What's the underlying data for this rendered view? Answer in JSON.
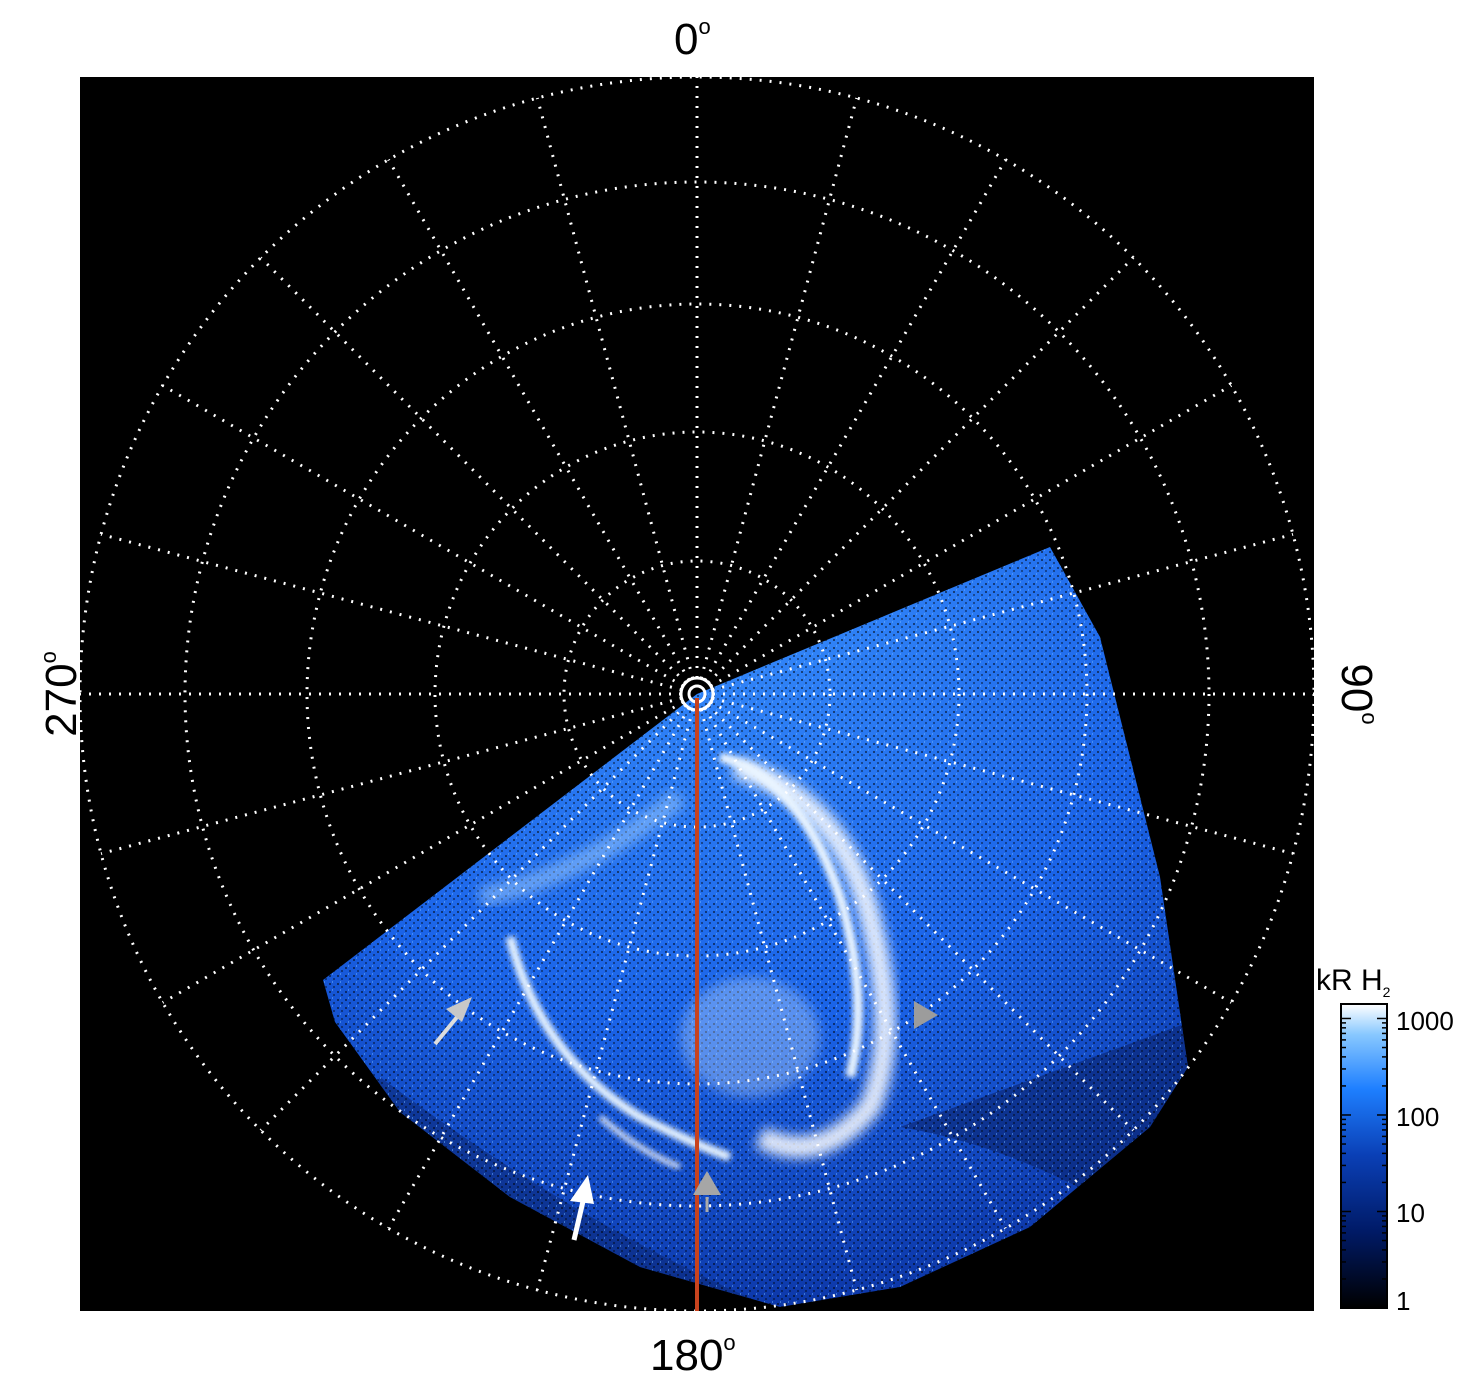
{
  "labels": {
    "top": "0",
    "bottom": "180",
    "left": "270",
    "right": "90",
    "degree_mark": "o"
  },
  "colorbar": {
    "unit": "kR H",
    "unit_subscript": "2",
    "ticks": [
      "1000",
      "100",
      "10",
      "1"
    ],
    "scale": "log",
    "colors": [
      "#000000",
      "#001a66",
      "#0a3fb5",
      "#1e7fff",
      "#88c8ff",
      "#ffffff"
    ]
  },
  "colors": {
    "background": "#000000",
    "grid": "#ffffff",
    "meridian_line": "#c8431e",
    "arrow_white": "#ffffff",
    "arrow_gray": "#a0a0a0"
  }
}
